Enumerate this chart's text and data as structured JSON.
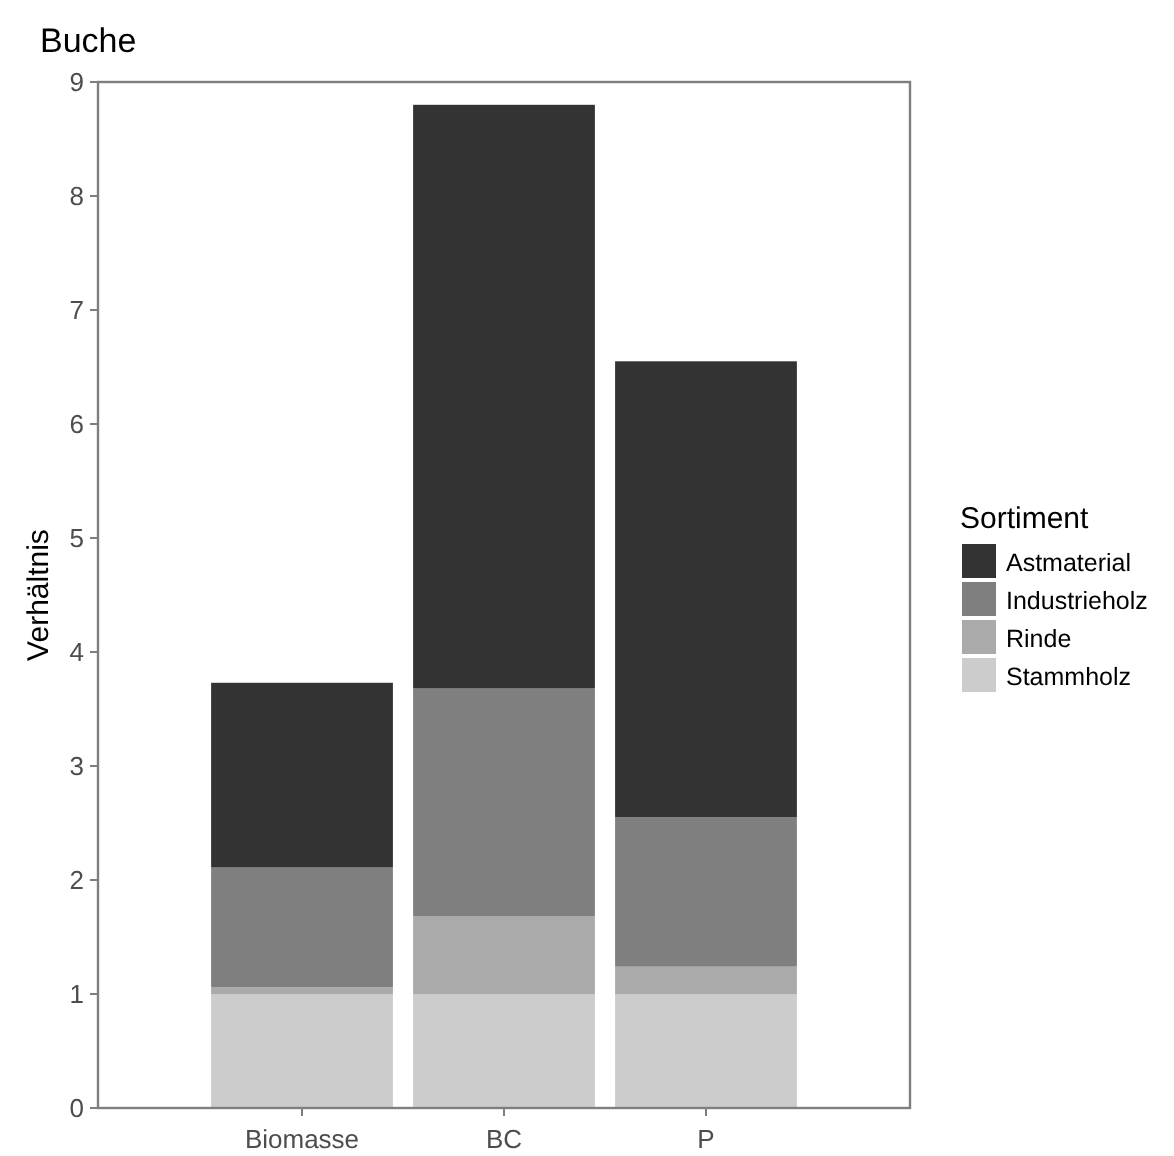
{
  "chart_data": {
    "type": "bar",
    "title": "Buche",
    "ylabel": "Verhältnis",
    "legend_title": "Sortiment",
    "stacked": true,
    "legend": "right",
    "categories": [
      "Biomasse",
      "BC",
      "P"
    ],
    "series": [
      {
        "name": "Stammholz",
        "color": "#cccccc",
        "values": [
          1.0,
          1.0,
          1.0
        ]
      },
      {
        "name": "Rinde",
        "color": "#aaaaaa",
        "values": [
          0.06,
          0.68,
          0.24
        ]
      },
      {
        "name": "Industrieholz",
        "color": "#7f7f7f",
        "values": [
          1.05,
          2.0,
          1.31
        ]
      },
      {
        "name": "Astmaterial",
        "color": "#333333",
        "values": [
          1.62,
          5.12,
          4.0
        ]
      }
    ],
    "ylim": [
      0,
      9
    ],
    "yticks": [
      0,
      1,
      2,
      3,
      4,
      5,
      6,
      7,
      8,
      9
    ]
  }
}
